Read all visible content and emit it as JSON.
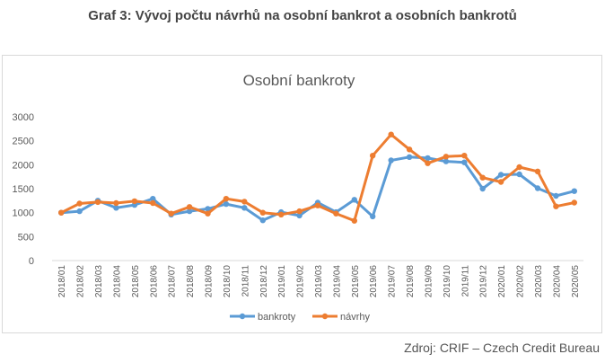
{
  "page": {
    "title": "Graf 3: Vývoj počtu návrhů na osobní bankrot a osobních bankrotů",
    "source": "Zdroj: CRIF – Czech Credit Bureau"
  },
  "chart_data": {
    "type": "line",
    "title": "Osobní bankroty",
    "xlabel": "",
    "ylabel": "",
    "ylim": [
      0,
      3000
    ],
    "yticks": [
      0,
      500,
      1000,
      1500,
      2000,
      2500,
      3000
    ],
    "grid": false,
    "legend_position": "bottom",
    "categories": [
      "2018/01",
      "2018/02",
      "2018/03",
      "2018/04",
      "2018/05",
      "2018/06",
      "2018/07",
      "2018/08",
      "2018/09",
      "2018/10",
      "2018/11",
      "2018/12",
      "2019/01",
      "2019/02",
      "2019/03",
      "2019/04",
      "2019/05",
      "2019/06",
      "2019/07",
      "2019/08",
      "2019/09",
      "2019/10",
      "2019/11",
      "2019/12",
      "2020/01",
      "2020/02",
      "2020/03",
      "2020/04",
      "2020/05"
    ],
    "series": [
      {
        "name": "bankroty",
        "color": "#5b9bd5",
        "values": [
          1000,
          1030,
          1250,
          1100,
          1160,
          1290,
          960,
          1030,
          1080,
          1180,
          1100,
          840,
          1010,
          940,
          1210,
          1010,
          1270,
          920,
          2090,
          2160,
          2140,
          2070,
          2050,
          1500,
          1790,
          1800,
          1510,
          1350,
          1450
        ]
      },
      {
        "name": "návrhy",
        "color": "#ed7d31",
        "values": [
          1000,
          1190,
          1220,
          1200,
          1240,
          1200,
          980,
          1120,
          980,
          1290,
          1230,
          1000,
          960,
          1030,
          1150,
          980,
          830,
          2190,
          2630,
          2320,
          2030,
          2170,
          2190,
          1730,
          1640,
          1950,
          1860,
          1130,
          1210
        ]
      }
    ]
  }
}
